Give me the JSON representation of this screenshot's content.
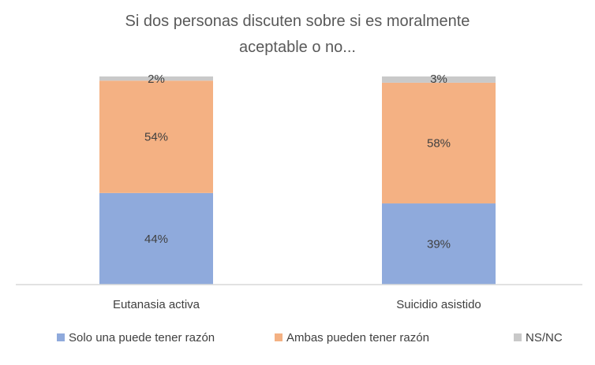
{
  "chart_data": {
    "type": "bar",
    "stacked": true,
    "title_lines": [
      "Si dos personas discuten sobre si es moralmente",
      "aceptable o no..."
    ],
    "categories": [
      "Eutanasia activa",
      "Suicidio asistido"
    ],
    "series": [
      {
        "name": "Solo una puede tener razón",
        "values": [
          44,
          39
        ],
        "labels": [
          "44%",
          "39%"
        ],
        "color": "#8FAADC"
      },
      {
        "name": "Ambas pueden tener razón",
        "values": [
          54,
          58
        ],
        "labels": [
          "54%",
          "58%"
        ],
        "color": "#F4B183"
      },
      {
        "name": "NS/NC",
        "values": [
          2,
          3
        ],
        "labels": [
          "2%",
          "3%"
        ],
        "color": "#C9C9C9"
      }
    ],
    "ylim": [
      0,
      100
    ],
    "grid": false,
    "legend_position": "bottom",
    "axis_line_color": "#D9D9D9"
  }
}
